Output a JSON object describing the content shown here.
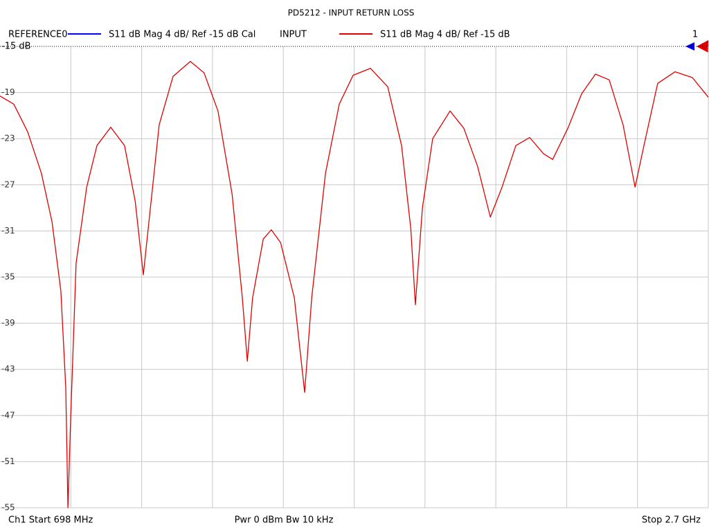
{
  "chart_data": {
    "type": "line",
    "title": "PD5212 - INPUT RETURN LOSS",
    "legend": [
      {
        "label": "REFERENCE0",
        "color": "#0000ff",
        "text": "S11  dB Mag  4 dB/ Ref -15 dB  Cal"
      },
      {
        "label": "INPUT",
        "color": "#e00000",
        "text": "S11  dB Mag  4 dB/ Ref -15 dB"
      }
    ],
    "marker_label": "1",
    "footer": {
      "left": "Ch1  Start  698 MHz",
      "center": "Pwr  0 dBm  Bw  10 kHz",
      "right": "Stop  2.7 GHz"
    },
    "x": [
      698,
      737,
      776,
      815,
      845,
      870,
      884,
      890,
      898,
      913,
      943,
      972,
      1011,
      1050,
      1080,
      1103,
      1119,
      1148,
      1187,
      1236,
      1275,
      1314,
      1354,
      1383,
      1397,
      1412,
      1442,
      1465,
      1491,
      1530,
      1559,
      1579,
      1618,
      1657,
      1696,
      1745,
      1794,
      1833,
      1859,
      1872,
      1892,
      1921,
      1970,
      2009,
      2048,
      2084,
      2117,
      2156,
      2195,
      2234,
      2260,
      2303,
      2342,
      2381,
      2420,
      2459,
      2493,
      2518,
      2557,
      2606,
      2655,
      2700
    ],
    "series": [
      {
        "name": "INPUT",
        "color": "#e00000",
        "values": [
          -19.3,
          -20.0,
          -22.4,
          -26.0,
          -30.2,
          -36.2,
          -44.6,
          -55,
          -47,
          -33.8,
          -27.2,
          -23.6,
          -22.0,
          -23.6,
          -28.4,
          -34.8,
          -30.2,
          -21.8,
          -17.6,
          -16.3,
          -17.3,
          -20.6,
          -27.8,
          -36.8,
          -42.3,
          -36.8,
          -31.7,
          -30.9,
          -32.0,
          -36.8,
          -45.0,
          -36.8,
          -26.0,
          -20.0,
          -17.5,
          -16.9,
          -18.5,
          -23.6,
          -30.8,
          -37.4,
          -29.0,
          -23.0,
          -20.6,
          -22.1,
          -25.4,
          -29.8,
          -27.2,
          -23.6,
          -22.9,
          -24.3,
          -24.8,
          -22.1,
          -19.1,
          -17.4,
          -17.9,
          -21.8,
          -27.2,
          -23.6,
          -18.2,
          -17.2,
          -17.7,
          -19.4
        ]
      }
    ],
    "xlim": [
      698,
      2700
    ],
    "ylim": [
      -55,
      -15
    ],
    "yticks": [
      {
        "value": -15,
        "label": "-15 dB"
      },
      -19,
      -23,
      -27,
      -31,
      -35,
      -39,
      -43,
      -47,
      -51,
      -55
    ],
    "grid": true
  }
}
